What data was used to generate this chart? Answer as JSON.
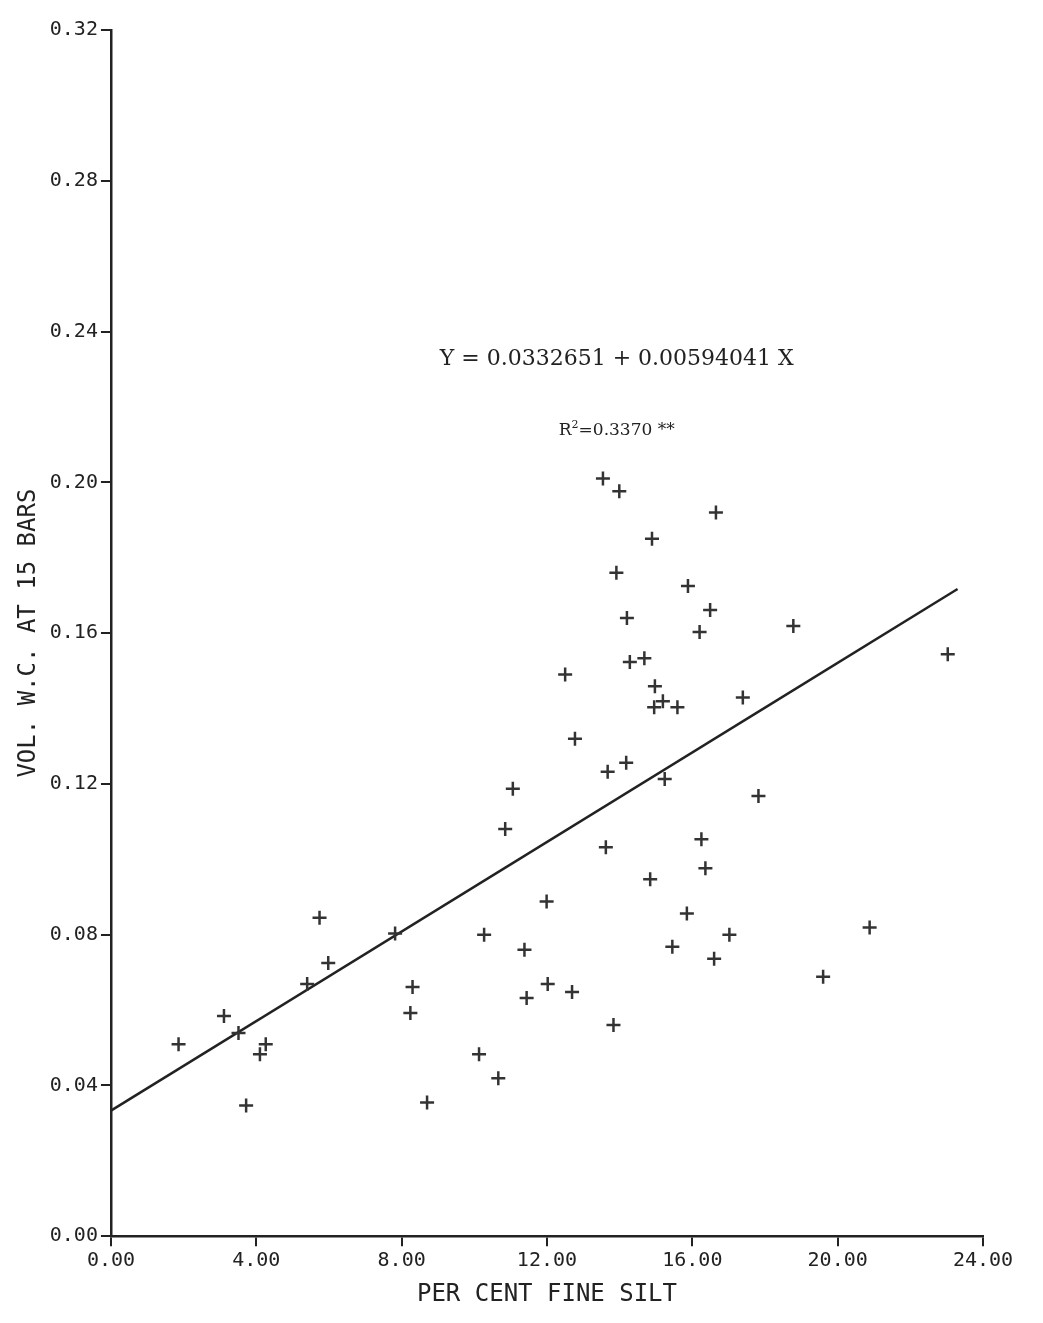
{
  "chart_data": {
    "type": "scatter",
    "xlabel": "PER CENT FINE SILT",
    "ylabel": "VOL. W.C. AT 15 BARS",
    "annotations": [
      "Y = 0.0332651 + 0.00594041 X",
      "R$^{2}$=0.3370 **"
    ],
    "xlim": [
      0,
      24
    ],
    "ylim": [
      0,
      0.32
    ],
    "xticks": [
      {
        "value": 0,
        "label": "0.00"
      },
      {
        "value": 4,
        "label": "4.00"
      },
      {
        "value": 8,
        "label": "8.00"
      },
      {
        "value": 12,
        "label": "12.00"
      },
      {
        "value": 16,
        "label": "16.00"
      },
      {
        "value": 20,
        "label": "20.00"
      },
      {
        "value": 24,
        "label": "24.00"
      }
    ],
    "yticks": [
      {
        "value": 0,
        "label": "0.00"
      },
      {
        "value": 0.04,
        "label": "0.04"
      },
      {
        "value": 0.08,
        "label": "0.08"
      },
      {
        "value": 0.12,
        "label": "0.12"
      },
      {
        "value": 0.16,
        "label": "0.16"
      },
      {
        "value": 0.2,
        "label": "0.20"
      },
      {
        "value": 0.24,
        "label": "0.24"
      },
      {
        "value": 0.28,
        "label": "0.28"
      },
      {
        "value": 0.32,
        "label": "0.32"
      }
    ],
    "grid": false,
    "legend": false,
    "marker": "cross",
    "series": [
      {
        "color": "#333333",
        "x": [
          1.86,
          3.11,
          3.51,
          3.72,
          4.1,
          4.26,
          5.4,
          5.74,
          5.98,
          7.82,
          8.3,
          8.24,
          8.7,
          10.27,
          10.13,
          10.66,
          10.85,
          11.06,
          11.38,
          11.44,
          11.99,
          12.02,
          12.5,
          12.77,
          12.69,
          13.54,
          13.99,
          13.62,
          13.67,
          13.91,
          14.18,
          14.2,
          13.83,
          14.28,
          14.68,
          14.89,
          14.97,
          14.95,
          15.19,
          15.59,
          15.24,
          14.84,
          15.85,
          15.45,
          15.88,
          16.2,
          16.25,
          16.36,
          16.49,
          16.6,
          16.65,
          17.02,
          17.39,
          17.82,
          18.78,
          19.6,
          20.88,
          23.03
        ],
        "values": [
          0.0509,
          0.0584,
          0.0539,
          0.0347,
          0.0483,
          0.0509,
          0.0669,
          0.0845,
          0.0725,
          0.0803,
          0.0661,
          0.0592,
          0.0355,
          0.08,
          0.0483,
          0.0419,
          0.108,
          0.1187,
          0.076,
          0.0632,
          0.0888,
          0.0669,
          0.149,
          0.132,
          0.0648,
          0.201,
          0.1976,
          0.1032,
          0.1232,
          0.176,
          0.1256,
          0.164,
          0.056,
          0.1523,
          0.1533,
          0.185,
          0.1459,
          0.1403,
          0.1419,
          0.1403,
          0.1213,
          0.0947,
          0.0856,
          0.0768,
          0.1725,
          0.1603,
          0.1053,
          0.0976,
          0.1661,
          0.0736,
          0.192,
          0.08,
          0.1429,
          0.1168,
          0.1619,
          0.0688,
          0.0819,
          0.1544
        ]
      },
      {
        "type": "line",
        "color": "#222222",
        "marker": "none",
        "x": [
          0,
          23.3
        ],
        "values": [
          0.0333,
          0.1717
        ]
      }
    ]
  }
}
